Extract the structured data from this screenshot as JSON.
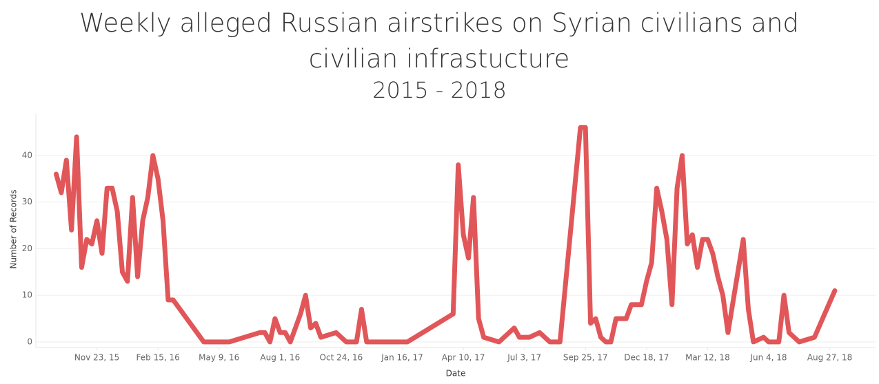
{
  "chart_data": {
    "type": "line",
    "title": "Weekly alleged Russian airstrikes on Syrian civilians and civilian infrastucture",
    "subtitle": "2015 - 2018",
    "xlabel": "Date",
    "ylabel": "Number of Records",
    "color": "#e15759",
    "x": [
      "2015-09-28",
      "2015-10-05",
      "2015-10-12",
      "2015-10-19",
      "2015-10-26",
      "2015-11-02",
      "2015-11-09",
      "2015-11-16",
      "2015-11-23",
      "2015-11-30",
      "2015-12-07",
      "2015-12-14",
      "2015-12-21",
      "2015-12-28",
      "2016-01-04",
      "2016-01-11",
      "2016-01-18",
      "2016-01-25",
      "2016-02-01",
      "2016-02-08",
      "2016-02-15",
      "2016-02-22",
      "2016-02-29",
      "2016-03-07",
      "2016-04-18",
      "2016-05-23",
      "2016-07-04",
      "2016-07-11",
      "2016-07-18",
      "2016-07-25",
      "2016-08-01",
      "2016-08-08",
      "2016-08-15",
      "2016-08-29",
      "2016-09-05",
      "2016-09-12",
      "2016-09-19",
      "2016-09-26",
      "2016-10-17",
      "2016-10-31",
      "2016-11-14",
      "2016-11-21",
      "2016-11-28",
      "2017-01-23",
      "2017-03-27",
      "2017-04-03",
      "2017-04-10",
      "2017-04-17",
      "2017-04-24",
      "2017-05-01",
      "2017-05-08",
      "2017-05-29",
      "2017-06-19",
      "2017-06-26",
      "2017-07-10",
      "2017-07-24",
      "2017-08-07",
      "2017-08-21",
      "2017-09-18",
      "2017-09-25",
      "2017-10-02",
      "2017-10-09",
      "2017-10-16",
      "2017-10-23",
      "2017-10-30",
      "2017-11-06",
      "2017-11-20",
      "2017-11-27",
      "2017-12-11",
      "2017-12-18",
      "2017-12-25",
      "2018-01-01",
      "2018-01-08",
      "2018-01-15",
      "2018-01-22",
      "2018-01-29",
      "2018-02-05",
      "2018-02-12",
      "2018-02-19",
      "2018-02-26",
      "2018-03-05",
      "2018-03-12",
      "2018-03-19",
      "2018-03-26",
      "2018-04-02",
      "2018-04-09",
      "2018-04-30",
      "2018-05-07",
      "2018-05-14",
      "2018-05-28",
      "2018-06-04",
      "2018-06-18",
      "2018-06-25",
      "2018-07-02",
      "2018-07-16",
      "2018-08-06",
      "2018-09-03"
    ],
    "values": [
      36,
      32,
      39,
      24,
      44,
      16,
      22,
      21,
      26,
      19,
      33,
      33,
      28,
      15,
      13,
      31,
      14,
      26,
      31,
      40,
      35,
      26,
      9,
      9,
      0,
      0,
      2,
      2,
      0,
      5,
      2,
      2,
      0,
      6,
      10,
      3,
      4,
      1,
      2,
      0,
      0,
      7,
      0,
      0,
      6,
      38,
      23,
      18,
      31,
      5,
      1,
      0,
      3,
      1,
      1,
      2,
      0,
      0,
      46,
      46,
      4,
      5,
      1,
      0,
      0,
      5,
      5,
      8,
      8,
      13,
      17,
      33,
      28,
      22,
      8,
      33,
      40,
      21,
      23,
      16,
      22,
      22,
      19,
      14,
      10,
      2,
      22,
      7,
      0,
      1,
      0,
      0,
      10,
      2,
      0,
      1,
      11
    ],
    "xlim": [
      "2015-08-31",
      "2018-10-29"
    ],
    "xticks": [
      {
        "value": "2015-11-23",
        "label": "Nov 23, 15"
      },
      {
        "value": "2016-02-15",
        "label": "Feb 15, 16"
      },
      {
        "value": "2016-05-09",
        "label": "May 9, 16"
      },
      {
        "value": "2016-08-01",
        "label": "Aug 1, 16"
      },
      {
        "value": "2016-10-24",
        "label": "Oct 24, 16"
      },
      {
        "value": "2017-01-16",
        "label": "Jan 16, 17"
      },
      {
        "value": "2017-04-10",
        "label": "Apr 10, 17"
      },
      {
        "value": "2017-07-03",
        "label": "Jul 3, 17"
      },
      {
        "value": "2017-09-25",
        "label": "Sep 25, 17"
      },
      {
        "value": "2017-12-18",
        "label": "Dec 18, 17"
      },
      {
        "value": "2018-03-12",
        "label": "Mar 12, 18"
      },
      {
        "value": "2018-06-04",
        "label": "Jun 4, 18"
      },
      {
        "value": "2018-08-27",
        "label": "Aug 27, 18"
      }
    ],
    "ylim": [
      -1.2,
      49
    ],
    "yticks": [
      0,
      10,
      20,
      30,
      40
    ],
    "grid": true
  }
}
